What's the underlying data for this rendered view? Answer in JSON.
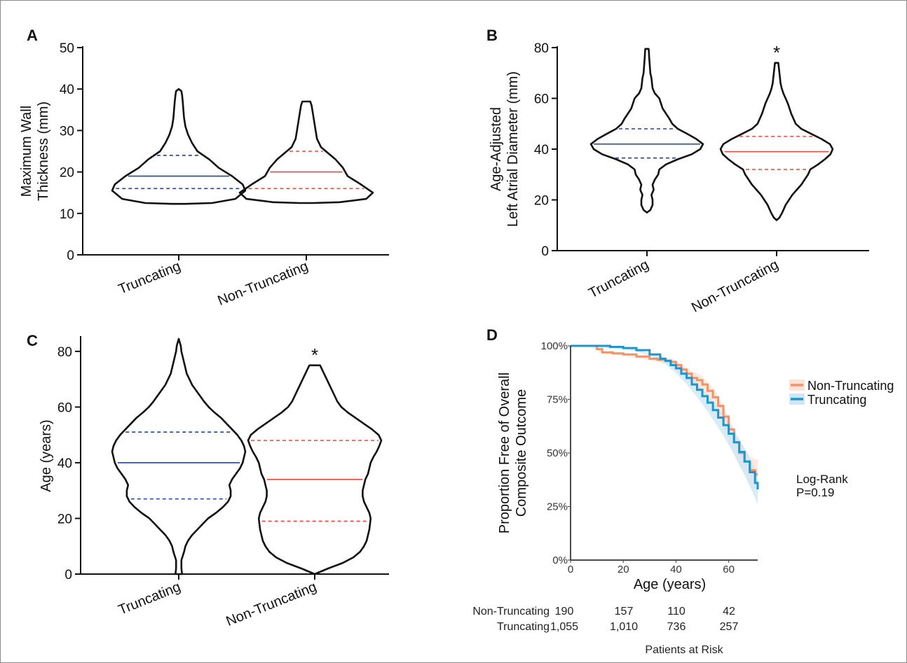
{
  "figure": {
    "colors": {
      "black": "#111111",
      "blue": "#2a3f9e",
      "red": "#e8473c",
      "orange": "#f0926a",
      "cyan": "#1f95cc",
      "orange_band": "#fde3d6",
      "cyan_band": "#cfe7f4"
    }
  },
  "chart_data": [
    {
      "id": "A",
      "panel_label": "A",
      "type": "violin",
      "ylabel_lines": [
        "Maximum Wall",
        "Thickness (mm)"
      ],
      "ylim": [
        0,
        50
      ],
      "yticks": [
        0,
        10,
        20,
        30,
        40,
        50
      ],
      "categories": [
        "Truncating",
        "Non-Truncating"
      ],
      "annotation": "",
      "series": [
        {
          "name": "Truncating",
          "color": "#2a3f9e",
          "median": 19,
          "q1": 16,
          "q3": 24,
          "profile": [
            [
              12.3,
              0.1
            ],
            [
              12.5,
              0.5
            ],
            [
              13.5,
              0.85
            ],
            [
              15.5,
              1.0
            ],
            [
              17,
              0.96
            ],
            [
              19,
              0.8
            ],
            [
              21,
              0.6
            ],
            [
              23,
              0.46
            ],
            [
              25,
              0.28
            ],
            [
              27,
              0.2
            ],
            [
              29,
              0.14
            ],
            [
              31,
              0.1
            ],
            [
              33,
              0.08
            ],
            [
              35,
              0.07
            ],
            [
              37,
              0.06
            ],
            [
              38.5,
              0.05
            ],
            [
              39.5,
              0.04
            ],
            [
              40,
              0.0
            ]
          ]
        },
        {
          "name": "Non-Truncating",
          "color": "#e8473c",
          "median": 20,
          "q1": 16,
          "q3": 25,
          "profile": [
            [
              12.5,
              0.1
            ],
            [
              12.7,
              0.5
            ],
            [
              13.5,
              0.9
            ],
            [
              15,
              1.0
            ],
            [
              17,
              0.82
            ],
            [
              19,
              0.62
            ],
            [
              21,
              0.55
            ],
            [
              23,
              0.44
            ],
            [
              24.5,
              0.33
            ],
            [
              26,
              0.22
            ],
            [
              28,
              0.16
            ],
            [
              30,
              0.14
            ],
            [
              32,
              0.12
            ],
            [
              34,
              0.1
            ],
            [
              36,
              0.08
            ],
            [
              37,
              0.06
            ]
          ]
        }
      ]
    },
    {
      "id": "B",
      "panel_label": "B",
      "type": "violin",
      "ylabel_lines": [
        "Age-Adjusted",
        "Left Atrial Diameter (mm)"
      ],
      "ylim": [
        0,
        80
      ],
      "yticks": [
        0,
        20,
        40,
        60,
        80
      ],
      "categories": [
        "Truncating",
        "Non-Truncating"
      ],
      "annotation": "*",
      "series": [
        {
          "name": "Truncating",
          "color": "#2a3f9e",
          "median": 42,
          "q1": 36.5,
          "q3": 48,
          "profile": [
            [
              15,
              0.0
            ],
            [
              16,
              0.06
            ],
            [
              18,
              0.1
            ],
            [
              20,
              0.1
            ],
            [
              22,
              0.08
            ],
            [
              24,
              0.12
            ],
            [
              26,
              0.1
            ],
            [
              28,
              0.14
            ],
            [
              30,
              0.2
            ],
            [
              32,
              0.22
            ],
            [
              34,
              0.34
            ],
            [
              36,
              0.55
            ],
            [
              38,
              0.8
            ],
            [
              40,
              0.95
            ],
            [
              42,
              1.0
            ],
            [
              44,
              0.88
            ],
            [
              46,
              0.72
            ],
            [
              48,
              0.55
            ],
            [
              50,
              0.45
            ],
            [
              52,
              0.4
            ],
            [
              54,
              0.34
            ],
            [
              56,
              0.28
            ],
            [
              58,
              0.25
            ],
            [
              60,
              0.22
            ],
            [
              62,
              0.14
            ],
            [
              64,
              0.1
            ],
            [
              66,
              0.09
            ],
            [
              68,
              0.08
            ],
            [
              70,
              0.06
            ],
            [
              73,
              0.05
            ],
            [
              76,
              0.04
            ],
            [
              78,
              0.035
            ],
            [
              79.5,
              0.03
            ]
          ]
        },
        {
          "name": "Non-Truncating",
          "color": "#e8473c",
          "median": 39,
          "q1": 32,
          "q3": 45,
          "profile": [
            [
              12,
              0.0
            ],
            [
              13,
              0.05
            ],
            [
              15,
              0.1
            ],
            [
              18,
              0.16
            ],
            [
              20,
              0.22
            ],
            [
              22,
              0.28
            ],
            [
              24,
              0.36
            ],
            [
              26,
              0.44
            ],
            [
              28,
              0.5
            ],
            [
              30,
              0.56
            ],
            [
              32,
              0.6
            ],
            [
              34,
              0.74
            ],
            [
              36,
              0.86
            ],
            [
              38,
              0.96
            ],
            [
              40,
              1.0
            ],
            [
              42,
              0.95
            ],
            [
              44,
              0.8
            ],
            [
              46,
              0.62
            ],
            [
              48,
              0.44
            ],
            [
              50,
              0.34
            ],
            [
              52,
              0.3
            ],
            [
              54,
              0.26
            ],
            [
              56,
              0.23
            ],
            [
              58,
              0.2
            ],
            [
              60,
              0.16
            ],
            [
              62,
              0.12
            ],
            [
              64,
              0.09
            ],
            [
              66,
              0.07
            ],
            [
              68,
              0.06
            ],
            [
              70,
              0.05
            ],
            [
              72,
              0.04
            ],
            [
              74,
              0.03
            ]
          ]
        }
      ]
    },
    {
      "id": "C",
      "panel_label": "C",
      "type": "violin",
      "ylabel_lines": [
        "Age (years)"
      ],
      "ylim": [
        0,
        85
      ],
      "yticks": [
        0,
        20,
        40,
        60,
        80
      ],
      "categories": [
        "Truncating",
        "Non-Truncating"
      ],
      "annotation": "*",
      "series": [
        {
          "name": "Truncating",
          "color": "#2a3f9e",
          "median": 40,
          "q1": 27,
          "q3": 51,
          "profile": [
            [
              0,
              0.05
            ],
            [
              2,
              0.04
            ],
            [
              5,
              0.04
            ],
            [
              8,
              0.08
            ],
            [
              10,
              0.1
            ],
            [
              12,
              0.14
            ],
            [
              14,
              0.2
            ],
            [
              16,
              0.28
            ],
            [
              18,
              0.36
            ],
            [
              20,
              0.44
            ],
            [
              22,
              0.56
            ],
            [
              24,
              0.66
            ],
            [
              26,
              0.74
            ],
            [
              28,
              0.78
            ],
            [
              30,
              0.78
            ],
            [
              32,
              0.76
            ],
            [
              34,
              0.8
            ],
            [
              36,
              0.86
            ],
            [
              38,
              0.92
            ],
            [
              40,
              0.96
            ],
            [
              42,
              0.98
            ],
            [
              44,
              1.0
            ],
            [
              46,
              0.98
            ],
            [
              48,
              0.94
            ],
            [
              50,
              0.88
            ],
            [
              52,
              0.8
            ],
            [
              54,
              0.72
            ],
            [
              56,
              0.64
            ],
            [
              58,
              0.54
            ],
            [
              60,
              0.45
            ],
            [
              62,
              0.38
            ],
            [
              64,
              0.32
            ],
            [
              66,
              0.26
            ],
            [
              68,
              0.2
            ],
            [
              70,
              0.16
            ],
            [
              72,
              0.12
            ],
            [
              74,
              0.1
            ],
            [
              76,
              0.08
            ],
            [
              78,
              0.06
            ],
            [
              80,
              0.04
            ],
            [
              82,
              0.03
            ],
            [
              84.5,
              0.0
            ]
          ]
        },
        {
          "name": "Non-Truncating",
          "color": "#e8473c",
          "median": 34,
          "q1": 19,
          "q3": 48,
          "profile": [
            [
              0,
              0.0
            ],
            [
              2,
              0.2
            ],
            [
              4,
              0.42
            ],
            [
              6,
              0.58
            ],
            [
              8,
              0.68
            ],
            [
              10,
              0.74
            ],
            [
              12,
              0.78
            ],
            [
              14,
              0.8
            ],
            [
              16,
              0.82
            ],
            [
              18,
              0.83
            ],
            [
              20,
              0.84
            ],
            [
              22,
              0.82
            ],
            [
              24,
              0.78
            ],
            [
              26,
              0.74
            ],
            [
              28,
              0.72
            ],
            [
              30,
              0.72
            ],
            [
              32,
              0.74
            ],
            [
              34,
              0.76
            ],
            [
              36,
              0.8
            ],
            [
              38,
              0.82
            ],
            [
              40,
              0.84
            ],
            [
              42,
              0.88
            ],
            [
              44,
              0.93
            ],
            [
              46,
              0.97
            ],
            [
              48,
              1.0
            ],
            [
              50,
              0.96
            ],
            [
              52,
              0.86
            ],
            [
              54,
              0.74
            ],
            [
              56,
              0.62
            ],
            [
              58,
              0.5
            ],
            [
              60,
              0.4
            ],
            [
              62,
              0.34
            ],
            [
              64,
              0.3
            ],
            [
              66,
              0.26
            ],
            [
              68,
              0.22
            ],
            [
              70,
              0.18
            ],
            [
              72,
              0.14
            ],
            [
              74,
              0.1
            ],
            [
              75,
              0.08
            ]
          ]
        }
      ]
    },
    {
      "id": "D",
      "panel_label": "D",
      "type": "line",
      "xlabel": "Age (years)",
      "ylabel_lines": [
        "Proportion Free of Overall",
        "Composite Outcome"
      ],
      "xlim": [
        0,
        71
      ],
      "ylim": [
        0,
        100
      ],
      "xticks": [
        0,
        20,
        40,
        60
      ],
      "yticks": [
        0,
        25,
        50,
        75,
        100
      ],
      "ytick_labels": [
        "0%",
        "25%",
        "50%",
        "75%",
        "100%"
      ],
      "legend_position": "right",
      "series": [
        {
          "name": "Non-Truncating",
          "color": "#f0926a",
          "band": "#fde3d6",
          "x": [
            0,
            8,
            10,
            12,
            16,
            20,
            25,
            30,
            33,
            36,
            38,
            40,
            42,
            44,
            46,
            48,
            50,
            52,
            54,
            56,
            58,
            60,
            62,
            64,
            66,
            68,
            70,
            71
          ],
          "y": [
            100,
            100,
            98.5,
            97,
            96.5,
            96,
            95,
            94,
            93.5,
            93,
            92.5,
            91,
            89,
            87,
            85,
            84,
            82,
            79,
            76,
            72,
            67,
            61,
            55,
            50,
            46,
            42,
            40,
            40
          ]
        },
        {
          "name": "Truncating",
          "color": "#1f95cc",
          "band": "#cfe7f4",
          "x": [
            0,
            10,
            15,
            20,
            25,
            30,
            34,
            36,
            38,
            40,
            42,
            44,
            46,
            48,
            50,
            52,
            54,
            56,
            58,
            60,
            62,
            64,
            66,
            68,
            70,
            71
          ],
          "y": [
            100,
            100,
            99.5,
            99,
            98,
            96,
            94,
            93,
            91,
            89.5,
            87,
            85,
            82,
            79.5,
            76.5,
            73.5,
            70,
            66.5,
            63,
            59,
            55,
            50.5,
            46,
            41,
            36,
            33
          ]
        }
      ],
      "annotation_lines": [
        "Log-Rank",
        "P=0.19"
      ],
      "risk_table": {
        "title": "Patients at Risk",
        "rows": [
          {
            "name": "Non-Truncating",
            "values": [
              "190",
              "157",
              "110",
              "42"
            ]
          },
          {
            "name": "Truncating",
            "values": [
              "1,055",
              "1,010",
              "736",
              "257"
            ]
          }
        ]
      }
    }
  ]
}
